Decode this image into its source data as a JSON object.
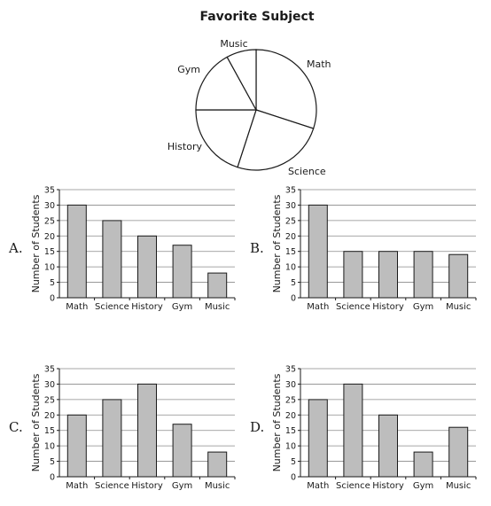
{
  "colors": {
    "bar": "#bdbdbd",
    "outline": "#1a1a1a",
    "grid": "#8a8a8a"
  },
  "chart_data": [
    {
      "id": "pie",
      "type": "pie",
      "title": "Favorite Subject",
      "slices": [
        {
          "label": "Math",
          "value": 30
        },
        {
          "label": "Science",
          "value": 25
        },
        {
          "label": "History",
          "value": 20
        },
        {
          "label": "Gym",
          "value": 17
        },
        {
          "label": "Music",
          "value": 8
        }
      ]
    },
    {
      "id": "A",
      "option": "A.",
      "type": "bar",
      "categories": [
        "Math",
        "Science",
        "History",
        "Gym",
        "Music"
      ],
      "values": [
        30,
        25,
        20,
        17,
        8
      ],
      "ylabel": "Number of Students",
      "ylim": [
        0,
        35
      ],
      "yticks": [
        0,
        5,
        10,
        15,
        20,
        25,
        30,
        35
      ],
      "grid": true
    },
    {
      "id": "B",
      "option": "B.",
      "type": "bar",
      "categories": [
        "Math",
        "Science",
        "History",
        "Gym",
        "Music"
      ],
      "values": [
        30,
        15,
        15,
        15,
        14
      ],
      "ylabel": "Number of Students",
      "ylim": [
        0,
        35
      ],
      "yticks": [
        0,
        5,
        10,
        15,
        20,
        25,
        30,
        35
      ],
      "grid": true
    },
    {
      "id": "C",
      "option": "C.",
      "type": "bar",
      "categories": [
        "Math",
        "Science",
        "History",
        "Gym",
        "Music"
      ],
      "values": [
        20,
        25,
        30,
        17,
        8
      ],
      "ylabel": "Number of Students",
      "ylim": [
        0,
        35
      ],
      "yticks": [
        0,
        5,
        10,
        15,
        20,
        25,
        30,
        35
      ],
      "grid": true
    },
    {
      "id": "D",
      "option": "D.",
      "type": "bar",
      "categories": [
        "Math",
        "Science",
        "History",
        "Gym",
        "Music"
      ],
      "values": [
        25,
        30,
        20,
        8,
        16
      ],
      "ylabel": "Number of Students",
      "ylim": [
        0,
        35
      ],
      "yticks": [
        0,
        5,
        10,
        15,
        20,
        25,
        30,
        35
      ],
      "grid": true
    }
  ]
}
